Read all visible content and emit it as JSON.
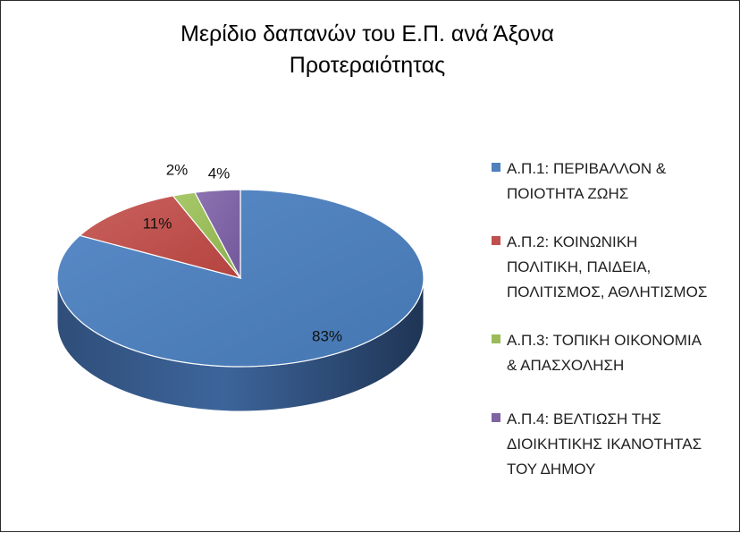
{
  "chart_data": {
    "type": "pie",
    "title": "Μερίδιο δαπανών του Ε.Π. ανά Άξονα\nΠροτεραιότητας",
    "categories": [
      "Α.Π.1: ΠΕΡΙΒΑΛΛΟΝ & ΠΟΙΟΤΗΤΑ ΖΩΗΣ",
      "Α.Π.2: ΚΟΙΝΩΝΙΚΗ ΠΟΛΙΤΙΚΗ, ΠΑΙΔΕΙΑ, ΠΟΛΙΤΙΣΜΟΣ, ΑΘΛΗΤΙΣΜΟΣ",
      "Α.Π.3: ΤΟΠΙΚΗ ΟΙΚΟΝΟΜΙΑ & ΑΠΑΣΧΟΛΗΣΗ",
      "Α.Π.4: ΒΕΛΤΙΩΣΗ ΤΗΣ ΔΙΟΙΚΗΤΙΚΗΣ ΙΚΑΝΟΤΗΤΑΣ ΤΟΥ ΔΗΜΟΥ"
    ],
    "legend_labels": [
      "Α.Π.1: ΠΕΡΙΒΑΛΛΟΝ &\nΠΟΙΟΤΗΤΑ ΖΩΗΣ",
      "Α.Π.2: ΚΟΙΝΩΝΙΚΗ\nΠΟΛΙΤΙΚΗ, ΠΑΙΔΕΙΑ,\nΠΟΛΙΤΙΣΜΟΣ, ΑΘΛΗΤΙΣΜΟΣ",
      "Α.Π.3: ΤΟΠΙΚΗ ΟΙΚΟΝΟΜΙΑ\n& ΑΠΑΣΧΟΛΗΣΗ",
      "Α.Π.4: ΒΕΛΤΙΩΣΗ ΤΗΣ\nΔΙΟΙΚΗΤΙΚΗΣ ΙΚΑΝΟΤΗΤΑΣ\nΤΟΥ ΔΗΜΟΥ"
    ],
    "values": [
      83,
      11,
      2,
      4
    ],
    "data_labels": [
      "83%",
      "11%",
      "2%",
      "4%"
    ],
    "colors": [
      "#4f81bd",
      "#c0504d",
      "#9bbb59",
      "#8064a2"
    ],
    "style": "3d",
    "legend_position": "right"
  }
}
